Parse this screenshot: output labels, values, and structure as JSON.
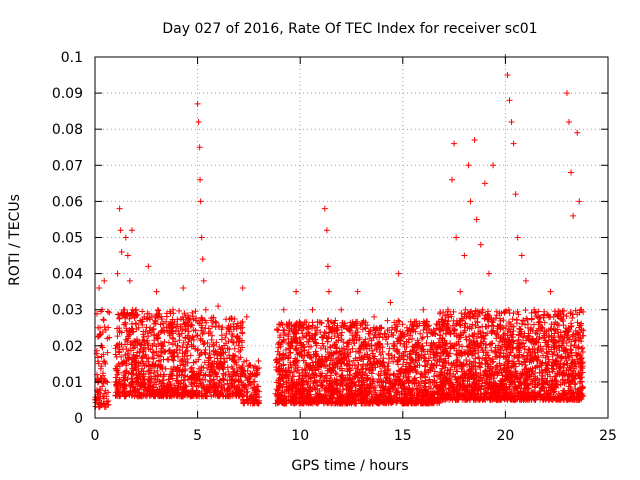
{
  "chart_data": {
    "type": "scatter",
    "title": "Day 027 of 2016, Rate Of TEC Index for receiver sc01",
    "xlabel": "GPS time / hours",
    "ylabel": "ROTI / TECUs",
    "xlim": [
      0,
      25
    ],
    "ylim": [
      0,
      0.1
    ],
    "xticks": [
      0,
      5,
      10,
      15,
      20,
      25
    ],
    "xtick_labels": [
      "0",
      "5",
      "10",
      "15",
      "20",
      "25"
    ],
    "yticks": [
      0,
      0.01,
      0.02,
      0.03,
      0.04,
      0.05,
      0.06,
      0.07,
      0.08,
      0.09,
      0.1
    ],
    "ytick_labels": [
      "0",
      "0.01",
      "0.02",
      "0.03",
      "0.04",
      "0.05",
      "0.06",
      "0.07",
      "0.08",
      "0.09",
      "0.1"
    ],
    "grid": true,
    "marker": "+",
    "color": "#ff0000",
    "series": [
      {
        "name": "sc01 ROTI",
        "points": [
          [
            0.05,
            0.005
          ],
          [
            0.1,
            0.012
          ],
          [
            0.15,
            0.025
          ],
          [
            0.2,
            0.036
          ],
          [
            0.25,
            0.008
          ],
          [
            0.3,
            0.02
          ],
          [
            0.35,
            0.03
          ],
          [
            0.4,
            0.01
          ],
          [
            0.45,
            0.038
          ],
          [
            0.5,
            0.015
          ],
          [
            0.55,
            0.006
          ],
          [
            0.6,
            0.022
          ],
          [
            1.0,
            0.01
          ],
          [
            1.1,
            0.04
          ],
          [
            1.2,
            0.058
          ],
          [
            1.25,
            0.052
          ],
          [
            1.3,
            0.046
          ],
          [
            1.4,
            0.03
          ],
          [
            1.5,
            0.05
          ],
          [
            1.6,
            0.045
          ],
          [
            1.7,
            0.038
          ],
          [
            1.8,
            0.052
          ],
          [
            1.9,
            0.02
          ],
          [
            2.0,
            0.03
          ],
          [
            2.2,
            0.015
          ],
          [
            2.4,
            0.028
          ],
          [
            2.6,
            0.042
          ],
          [
            2.8,
            0.02
          ],
          [
            3.0,
            0.035
          ],
          [
            3.2,
            0.012
          ],
          [
            3.5,
            0.025
          ],
          [
            3.8,
            0.03
          ],
          [
            4.0,
            0.018
          ],
          [
            4.3,
            0.036
          ],
          [
            4.6,
            0.022
          ],
          [
            5.0,
            0.087
          ],
          [
            5.05,
            0.082
          ],
          [
            5.1,
            0.075
          ],
          [
            5.12,
            0.066
          ],
          [
            5.15,
            0.06
          ],
          [
            5.2,
            0.05
          ],
          [
            5.25,
            0.044
          ],
          [
            5.3,
            0.038
          ],
          [
            5.4,
            0.03
          ],
          [
            5.6,
            0.01
          ],
          [
            5.8,
            0.02
          ],
          [
            6.0,
            0.031
          ],
          [
            6.2,
            0.015
          ],
          [
            6.5,
            0.025
          ],
          [
            6.8,
            0.01
          ],
          [
            7.0,
            0.02
          ],
          [
            7.2,
            0.036
          ],
          [
            7.4,
            0.028
          ],
          [
            7.6,
            0.012
          ],
          [
            7.8,
            0.008
          ],
          [
            9.0,
            0.012
          ],
          [
            9.2,
            0.03
          ],
          [
            9.5,
            0.018
          ],
          [
            9.8,
            0.035
          ],
          [
            10.0,
            0.008
          ],
          [
            10.3,
            0.025
          ],
          [
            10.6,
            0.03
          ],
          [
            10.9,
            0.015
          ],
          [
            11.2,
            0.058
          ],
          [
            11.3,
            0.052
          ],
          [
            11.35,
            0.042
          ],
          [
            11.4,
            0.035
          ],
          [
            11.6,
            0.02
          ],
          [
            12.0,
            0.03
          ],
          [
            12.4,
            0.012
          ],
          [
            12.8,
            0.035
          ],
          [
            13.2,
            0.02
          ],
          [
            13.6,
            0.028
          ],
          [
            14.0,
            0.015
          ],
          [
            14.4,
            0.032
          ],
          [
            14.8,
            0.04
          ],
          [
            15.2,
            0.025
          ],
          [
            15.6,
            0.02
          ],
          [
            16.0,
            0.03
          ],
          [
            16.4,
            0.015
          ],
          [
            16.8,
            0.022
          ],
          [
            17.2,
            0.03
          ],
          [
            17.4,
            0.066
          ],
          [
            17.5,
            0.076
          ],
          [
            17.6,
            0.05
          ],
          [
            17.8,
            0.035
          ],
          [
            18.0,
            0.045
          ],
          [
            18.2,
            0.07
          ],
          [
            18.3,
            0.06
          ],
          [
            18.5,
            0.077
          ],
          [
            18.6,
            0.055
          ],
          [
            18.8,
            0.048
          ],
          [
            19.0,
            0.065
          ],
          [
            19.2,
            0.04
          ],
          [
            19.4,
            0.07
          ],
          [
            20.0,
            0.1
          ],
          [
            20.1,
            0.095
          ],
          [
            20.2,
            0.088
          ],
          [
            20.3,
            0.082
          ],
          [
            20.4,
            0.076
          ],
          [
            20.5,
            0.062
          ],
          [
            20.6,
            0.05
          ],
          [
            20.8,
            0.045
          ],
          [
            21.0,
            0.038
          ],
          [
            21.4,
            0.03
          ],
          [
            21.8,
            0.025
          ],
          [
            22.2,
            0.035
          ],
          [
            22.6,
            0.02
          ],
          [
            23.0,
            0.09
          ],
          [
            23.1,
            0.082
          ],
          [
            23.2,
            0.068
          ],
          [
            23.3,
            0.056
          ],
          [
            23.5,
            0.079
          ],
          [
            23.6,
            0.06
          ],
          [
            23.7,
            0.03
          ]
        ]
      }
    ],
    "noise": {
      "density_count": 5200,
      "segments": [
        {
          "start": 0.0,
          "end": 0.7,
          "low": 0.003,
          "high": 0.03,
          "weight": 0.7
        },
        {
          "start": 1.0,
          "end": 4.9,
          "low": 0.006,
          "high": 0.03,
          "weight": 1.2
        },
        {
          "start": 4.9,
          "end": 7.2,
          "low": 0.006,
          "high": 0.028,
          "weight": 1.0
        },
        {
          "start": 7.2,
          "end": 8.0,
          "low": 0.004,
          "high": 0.016,
          "weight": 0.8
        },
        {
          "start": 8.8,
          "end": 16.8,
          "low": 0.004,
          "high": 0.027,
          "weight": 1.4
        },
        {
          "start": 16.8,
          "end": 23.8,
          "low": 0.005,
          "high": 0.03,
          "weight": 1.5
        }
      ]
    }
  }
}
